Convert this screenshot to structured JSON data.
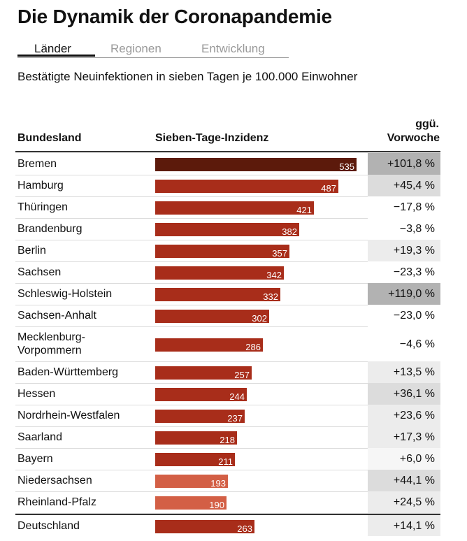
{
  "header": {
    "title": "Die Dynamik der Coronapandemie",
    "tabs": [
      {
        "label": "Länder",
        "active": true
      },
      {
        "label": "Regionen",
        "active": false
      },
      {
        "label": "Entwicklung",
        "active": false
      }
    ],
    "subtitle": "Bestätigte Neuinfektionen in sieben Tagen je 100.000 Einwohner"
  },
  "table": {
    "col_state": "Bundesland",
    "col_incidence": "Sieben-Tage-Inzidenz",
    "col_change_line1": "ggü.",
    "col_change_line2": "Vorwoche"
  },
  "colors": {
    "bar_dark": "#5c1a0b",
    "bar_main": "#a82d1a",
    "bar_light": "#d35f45"
  },
  "chart_data": {
    "type": "bar",
    "orientation": "horizontal",
    "categories": [
      "Bremen",
      "Hamburg",
      "Thüringen",
      "Brandenburg",
      "Berlin",
      "Sachsen",
      "Schleswig-Holstein",
      "Sachsen-Anhalt",
      "Mecklenburg-\nVorpommern",
      "Baden-Württemberg",
      "Hessen",
      "Nordrhein-Westfalen",
      "Saarland",
      "Bayern",
      "Niedersachsen",
      "Rheinland-Pfalz"
    ],
    "values": [
      535,
      487,
      421,
      382,
      357,
      342,
      332,
      302,
      286,
      257,
      244,
      237,
      218,
      211,
      193,
      190
    ],
    "change_labels": [
      "+101,8 %",
      "+45,4 %",
      "−17,8 %",
      "−3,8 %",
      "+19,3 %",
      "−23,3 %",
      "+119,0 %",
      "−23,0 %",
      "−4,6 %",
      "+13,5 %",
      "+36,1 %",
      "+23,6 %",
      "+17,3 %",
      "+6,0 %",
      "+44,1 %",
      "+24,5 %"
    ],
    "change_values": [
      101.8,
      45.4,
      -17.8,
      -3.8,
      19.3,
      -23.3,
      119.0,
      -23.0,
      -4.6,
      13.5,
      36.1,
      23.6,
      17.3,
      6.0,
      44.1,
      24.5
    ],
    "total": {
      "name": "Deutschland",
      "value": 263,
      "change_label": "+14,1 %",
      "change_value": 14.1
    }
  }
}
